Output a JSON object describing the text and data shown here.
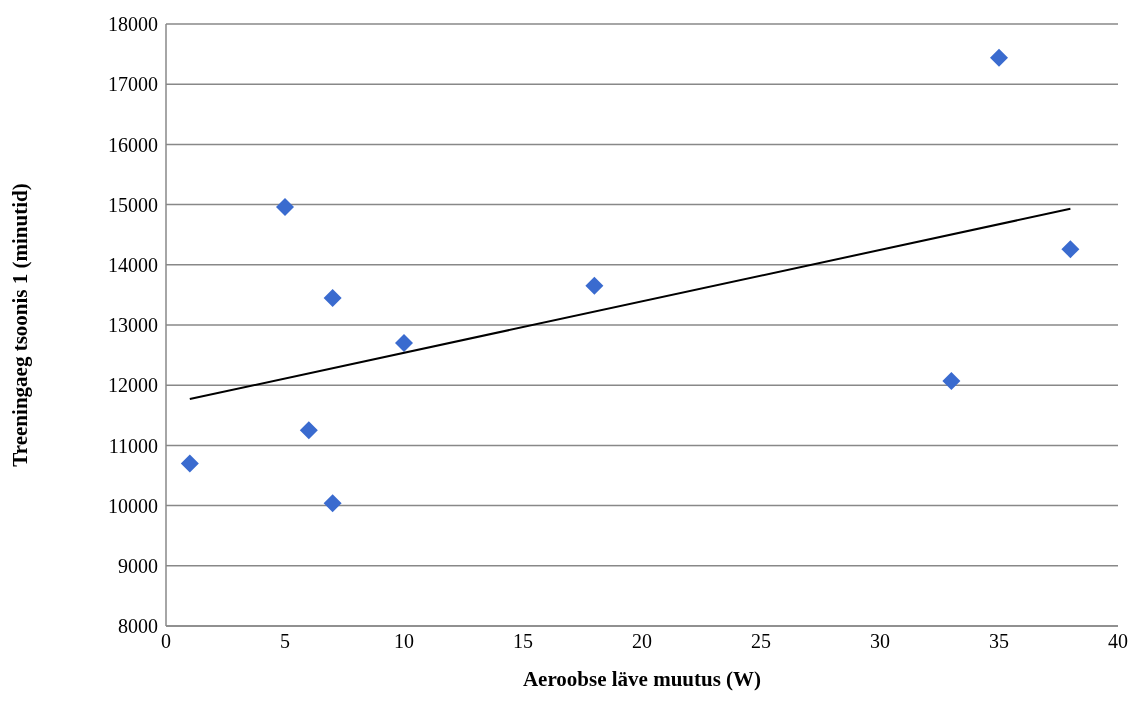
{
  "chart_data": {
    "type": "scatter",
    "xlabel": "Aeroobse läve muutus (W)",
    "ylabel": "Treeningaeg tsoonis 1 (minutid)",
    "xlim": [
      0,
      40
    ],
    "xticks": [
      0,
      5,
      10,
      15,
      20,
      25,
      30,
      35,
      40
    ],
    "ylim": [
      8000,
      18000
    ],
    "yticks": [
      8000,
      9000,
      10000,
      11000,
      12000,
      13000,
      14000,
      15000,
      16000,
      17000,
      18000
    ],
    "grid": "y",
    "series": [
      {
        "color": "#3a6bcf",
        "marker": "diamond",
        "x": [
          1,
          5,
          6,
          7,
          7,
          10,
          18,
          33,
          35,
          38
        ],
        "values": [
          10700,
          14960,
          11250,
          13450,
          10040,
          12700,
          13650,
          12070,
          17440,
          14260
        ]
      },
      {
        "type": "line",
        "marker": "none",
        "color": "#000000",
        "x": [
          1,
          38
        ],
        "values": [
          11770,
          14930
        ]
      }
    ]
  }
}
